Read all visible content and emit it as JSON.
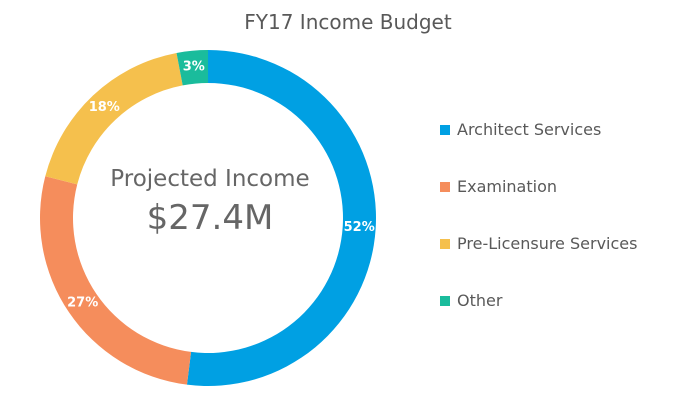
{
  "chart_data": {
    "type": "pie",
    "title": "FY17 Income Budget",
    "center_label": "Projected Income",
    "center_value": "$27.4M",
    "categories": [
      "Architect Services",
      "Examination",
      "Pre-Licensure Services",
      "Other"
    ],
    "values": [
      52,
      27,
      18,
      3
    ],
    "value_labels": [
      "52%",
      "27%",
      "18%",
      "3%"
    ],
    "colors": [
      "#00a0e3",
      "#f58d5c",
      "#f5c04d",
      "#1abc9c"
    ],
    "legend_position": "right"
  }
}
